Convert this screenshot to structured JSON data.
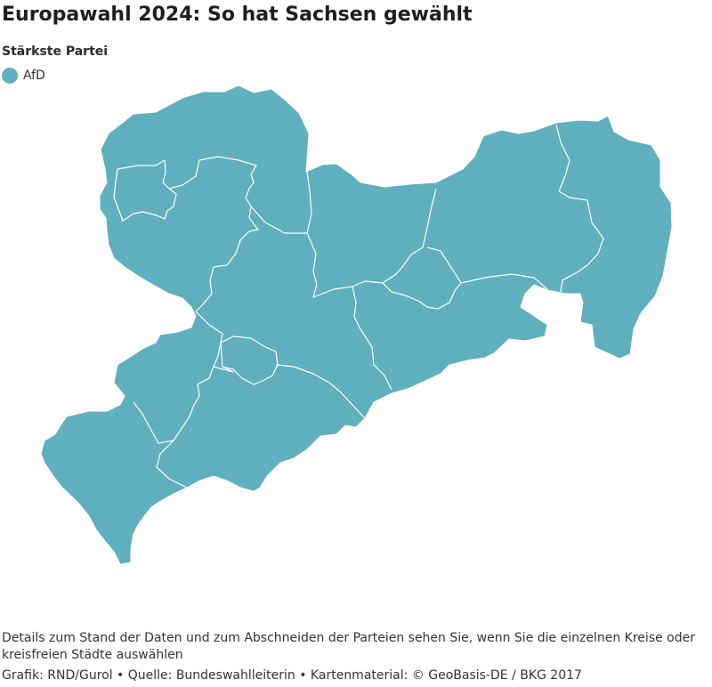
{
  "title": "Europawahl 2024: So hat Sachsen gewählt",
  "legend": {
    "heading": "Stärkste Partei",
    "items": [
      {
        "label": "AfD",
        "color": "#5fafbe"
      }
    ]
  },
  "map": {
    "region": "Sachsen",
    "fill_color": "#5fafbe",
    "border_color": "#ffffff",
    "all_districts_strongest_party": "AfD"
  },
  "note": "Details zum Stand der Daten und zum Abschneiden der Parteien sehen Sie, wenn Sie die einzelnen Kreise oder kreisfreien Städte auswählen",
  "credits": "Grafik: RND/Gurol • Quelle: Bundeswahlleiterin • Kartenmaterial: © GeoBasis-DE / BKG 2017"
}
